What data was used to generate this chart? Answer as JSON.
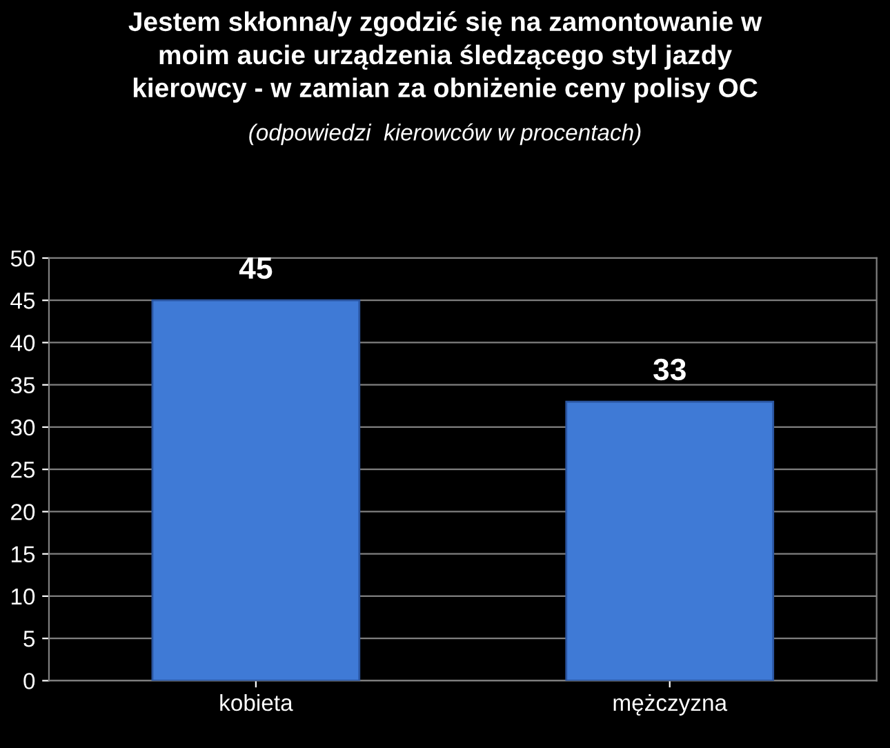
{
  "chart_data": {
    "type": "bar",
    "title": "Jestem skłonna/y zgodzić się na zamontowanie w\nmoim aucie urządzenia śledzącego styl jazdy\nkierowcy - w zamian za obniżenie ceny polisy OC",
    "subtitle": "(odpowiedzi  kierowców w procentach)",
    "categories": [
      "kobieta",
      "mężczyzna"
    ],
    "values": [
      45,
      33
    ],
    "color": "#3f7ad6",
    "ylim": [
      0,
      50
    ],
    "yticks": [
      0,
      5,
      10,
      15,
      20,
      25,
      30,
      35,
      40,
      45,
      50
    ],
    "grid": "y",
    "data_labels": true
  }
}
